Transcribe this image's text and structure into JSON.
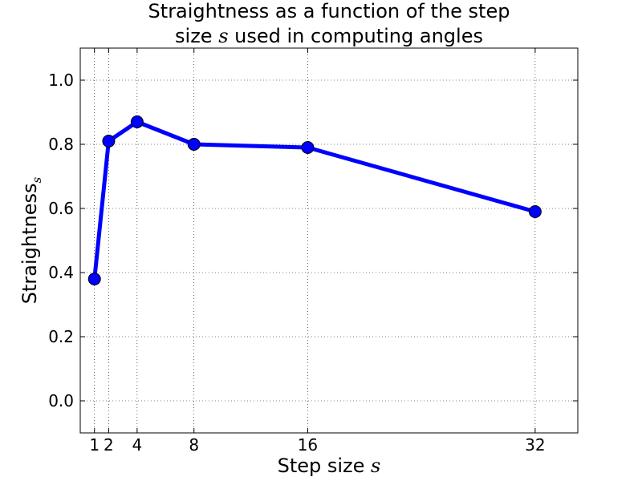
{
  "chart_data": {
    "type": "line",
    "title_line1": "Straightness as a function of the step",
    "title_line2_prefix": "size ",
    "title_line2_var": "s",
    "title_line2_suffix": " used in computing angles",
    "xlabel_prefix": "Step size ",
    "xlabel_var": "s",
    "ylabel_main": "Straightness",
    "ylabel_sub": "s",
    "xlim": [
      0,
      35
    ],
    "ylim": [
      -0.1,
      1.1
    ],
    "xticks": [
      1,
      2,
      4,
      8,
      16,
      32
    ],
    "xtick_labels": [
      "1",
      "2",
      "4",
      "8",
      "16",
      "32"
    ],
    "yticks": [
      0.0,
      0.2,
      0.4,
      0.6,
      0.8,
      1.0
    ],
    "ytick_labels": [
      "0.0",
      "0.2",
      "0.4",
      "0.6",
      "0.8",
      "1.0"
    ],
    "grid": true,
    "series": [
      {
        "x": [
          1,
          2,
          4,
          8,
          16,
          32
        ],
        "y": [
          0.38,
          0.81,
          0.87,
          0.8,
          0.79,
          0.59
        ],
        "color": "#0000ff",
        "marker": "circle"
      }
    ]
  }
}
